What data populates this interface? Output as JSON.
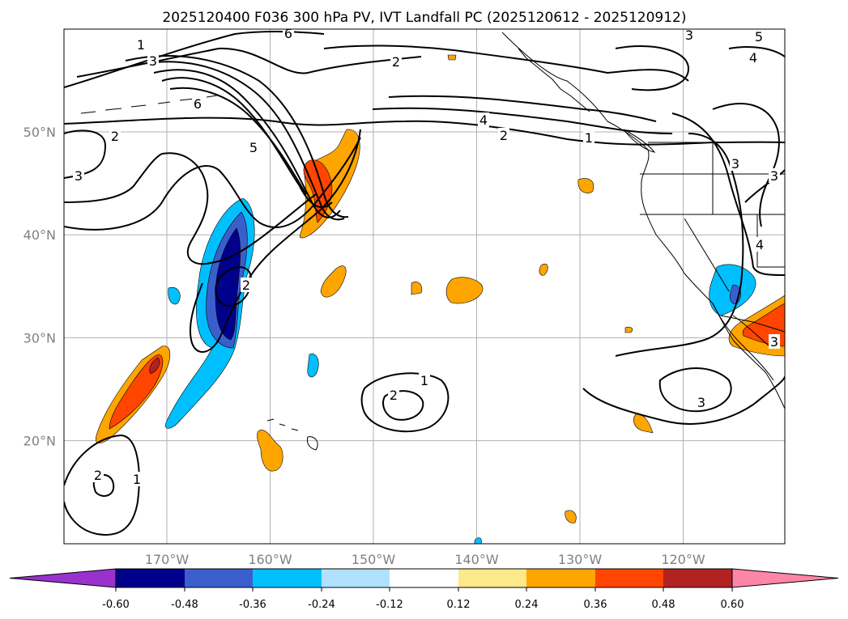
{
  "title": "2025120400 F036 300 hPa PV, IVT Landfall PC (2025120612 - 2025120912)",
  "lat_labels": [
    {
      "lat": 50,
      "text": "50°N"
    },
    {
      "lat": 40,
      "text": "40°N"
    },
    {
      "lat": 30,
      "text": "30°N"
    },
    {
      "lat": 20,
      "text": "20°N"
    }
  ],
  "lon_labels": [
    {
      "lon": -170,
      "text": "170°W"
    },
    {
      "lon": -160,
      "text": "160°W"
    },
    {
      "lon": -150,
      "text": "150°W"
    },
    {
      "lon": -140,
      "text": "140°W"
    },
    {
      "lon": -130,
      "text": "130°W"
    },
    {
      "lon": -120,
      "text": "120°W"
    }
  ],
  "colorbar": {
    "boundaries": [
      "-0.60",
      "-0.48",
      "-0.36",
      "-0.24",
      "-0.12",
      "0.12",
      "0.24",
      "0.36",
      "0.48",
      "0.60"
    ],
    "colors": [
      "#9932cc",
      "#00008b",
      "#3a5fcd",
      "#00bfff",
      "#b0e2ff",
      "#ffffff",
      "#fde98a",
      "#ffa500",
      "#ff4500",
      "#b22222",
      "#ff85a8"
    ]
  },
  "pv_contour_labels": [
    "1",
    "2",
    "3",
    "4",
    "5",
    "6"
  ]
}
